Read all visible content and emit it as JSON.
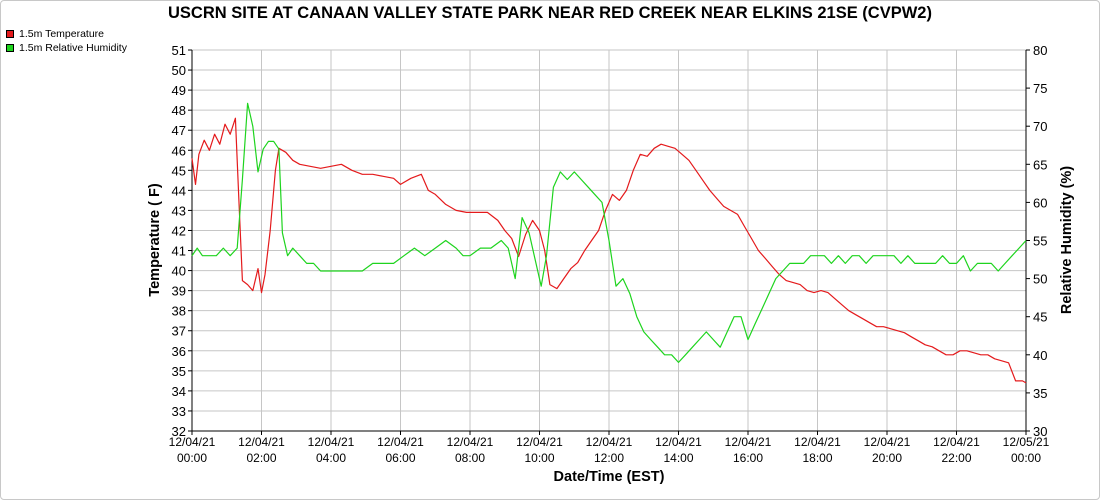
{
  "chart_data": {
    "type": "line",
    "title": "USCRN SITE AT CANAAN VALLEY STATE PARK NEAR RED CREEK NEAR ELKINS 21SE (CVPW2)",
    "xlabel": "Date/Time (EST)",
    "ylabel": "Temperature ( F)",
    "y2label": "Relative Humidity (%)",
    "xlim_hours": [
      0,
      24
    ],
    "ylim": [
      32,
      51
    ],
    "y2lim": [
      30,
      80
    ],
    "grid": true,
    "legend_position": "top-left",
    "x_ticks": [
      {
        "date": "12/04/21",
        "time": "00:00"
      },
      {
        "date": "12/04/21",
        "time": "02:00"
      },
      {
        "date": "12/04/21",
        "time": "04:00"
      },
      {
        "date": "12/04/21",
        "time": "06:00"
      },
      {
        "date": "12/04/21",
        "time": "08:00"
      },
      {
        "date": "12/04/21",
        "time": "10:00"
      },
      {
        "date": "12/04/21",
        "time": "12:00"
      },
      {
        "date": "12/04/21",
        "time": "14:00"
      },
      {
        "date": "12/04/21",
        "time": "16:00"
      },
      {
        "date": "12/04/21",
        "time": "18:00"
      },
      {
        "date": "12/04/21",
        "time": "20:00"
      },
      {
        "date": "12/04/21",
        "time": "22:00"
      },
      {
        "date": "12/05/21",
        "time": "00:00"
      }
    ],
    "y_ticks": [
      32,
      33,
      34,
      35,
      36,
      37,
      38,
      39,
      40,
      41,
      42,
      43,
      44,
      45,
      46,
      47,
      48,
      49,
      50,
      51
    ],
    "y2_ticks": [
      30,
      35,
      40,
      45,
      50,
      55,
      60,
      65,
      70,
      75,
      80
    ],
    "series": [
      {
        "name": "1.5m Temperature",
        "axis": "left",
        "color": "#e41a1c",
        "points": [
          [
            0.0,
            45.6
          ],
          [
            0.1,
            44.3
          ],
          [
            0.2,
            45.8
          ],
          [
            0.35,
            46.5
          ],
          [
            0.5,
            46.0
          ],
          [
            0.65,
            46.8
          ],
          [
            0.8,
            46.3
          ],
          [
            0.95,
            47.3
          ],
          [
            1.1,
            46.8
          ],
          [
            1.25,
            47.6
          ],
          [
            1.35,
            43.5
          ],
          [
            1.45,
            39.5
          ],
          [
            1.6,
            39.3
          ],
          [
            1.75,
            39.0
          ],
          [
            1.9,
            40.1
          ],
          [
            2.0,
            38.9
          ],
          [
            2.1,
            39.8
          ],
          [
            2.25,
            42.0
          ],
          [
            2.4,
            45.0
          ],
          [
            2.5,
            46.1
          ],
          [
            2.7,
            45.9
          ],
          [
            2.9,
            45.5
          ],
          [
            3.1,
            45.3
          ],
          [
            3.4,
            45.2
          ],
          [
            3.7,
            45.1
          ],
          [
            4.0,
            45.2
          ],
          [
            4.3,
            45.3
          ],
          [
            4.6,
            45.0
          ],
          [
            4.9,
            44.8
          ],
          [
            5.2,
            44.8
          ],
          [
            5.5,
            44.7
          ],
          [
            5.8,
            44.6
          ],
          [
            6.0,
            44.3
          ],
          [
            6.3,
            44.6
          ],
          [
            6.6,
            44.8
          ],
          [
            6.8,
            44.0
          ],
          [
            7.0,
            43.8
          ],
          [
            7.3,
            43.3
          ],
          [
            7.6,
            43.0
          ],
          [
            7.9,
            42.9
          ],
          [
            8.2,
            42.9
          ],
          [
            8.5,
            42.9
          ],
          [
            8.8,
            42.5
          ],
          [
            9.0,
            42.0
          ],
          [
            9.2,
            41.6
          ],
          [
            9.4,
            40.7
          ],
          [
            9.6,
            41.8
          ],
          [
            9.8,
            42.5
          ],
          [
            10.0,
            42.0
          ],
          [
            10.15,
            41.0
          ],
          [
            10.3,
            39.3
          ],
          [
            10.5,
            39.1
          ],
          [
            10.7,
            39.6
          ],
          [
            10.9,
            40.1
          ],
          [
            11.1,
            40.4
          ],
          [
            11.3,
            41.0
          ],
          [
            11.5,
            41.5
          ],
          [
            11.7,
            42.0
          ],
          [
            11.9,
            43.0
          ],
          [
            12.1,
            43.8
          ],
          [
            12.3,
            43.5
          ],
          [
            12.5,
            44.0
          ],
          [
            12.7,
            45.0
          ],
          [
            12.9,
            45.8
          ],
          [
            13.1,
            45.7
          ],
          [
            13.3,
            46.1
          ],
          [
            13.5,
            46.3
          ],
          [
            13.7,
            46.2
          ],
          [
            13.9,
            46.1
          ],
          [
            14.1,
            45.8
          ],
          [
            14.3,
            45.5
          ],
          [
            14.5,
            45.0
          ],
          [
            14.7,
            44.5
          ],
          [
            14.9,
            44.0
          ],
          [
            15.1,
            43.6
          ],
          [
            15.3,
            43.2
          ],
          [
            15.5,
            43.0
          ],
          [
            15.7,
            42.8
          ],
          [
            15.9,
            42.2
          ],
          [
            16.1,
            41.6
          ],
          [
            16.3,
            41.0
          ],
          [
            16.5,
            40.6
          ],
          [
            16.7,
            40.2
          ],
          [
            16.9,
            39.8
          ],
          [
            17.1,
            39.5
          ],
          [
            17.3,
            39.4
          ],
          [
            17.5,
            39.3
          ],
          [
            17.7,
            39.0
          ],
          [
            17.9,
            38.9
          ],
          [
            18.1,
            39.0
          ],
          [
            18.3,
            38.9
          ],
          [
            18.5,
            38.6
          ],
          [
            18.7,
            38.3
          ],
          [
            18.9,
            38.0
          ],
          [
            19.1,
            37.8
          ],
          [
            19.3,
            37.6
          ],
          [
            19.5,
            37.4
          ],
          [
            19.7,
            37.2
          ],
          [
            19.9,
            37.2
          ],
          [
            20.1,
            37.1
          ],
          [
            20.3,
            37.0
          ],
          [
            20.5,
            36.9
          ],
          [
            20.7,
            36.7
          ],
          [
            20.9,
            36.5
          ],
          [
            21.1,
            36.3
          ],
          [
            21.3,
            36.2
          ],
          [
            21.5,
            36.0
          ],
          [
            21.7,
            35.8
          ],
          [
            21.9,
            35.8
          ],
          [
            22.1,
            36.0
          ],
          [
            22.3,
            36.0
          ],
          [
            22.5,
            35.9
          ],
          [
            22.7,
            35.8
          ],
          [
            22.9,
            35.8
          ],
          [
            23.1,
            35.6
          ],
          [
            23.3,
            35.5
          ],
          [
            23.5,
            35.4
          ],
          [
            23.7,
            34.5
          ],
          [
            23.9,
            34.5
          ],
          [
            24.0,
            34.4
          ]
        ]
      },
      {
        "name": "1.5m Relative Humidity",
        "axis": "right",
        "color": "#1ed41e",
        "points": [
          [
            0.0,
            53
          ],
          [
            0.15,
            54
          ],
          [
            0.3,
            53
          ],
          [
            0.5,
            53
          ],
          [
            0.7,
            53
          ],
          [
            0.9,
            54
          ],
          [
            1.1,
            53
          ],
          [
            1.3,
            54
          ],
          [
            1.45,
            63
          ],
          [
            1.6,
            73
          ],
          [
            1.75,
            70
          ],
          [
            1.9,
            64
          ],
          [
            2.05,
            67
          ],
          [
            2.2,
            68
          ],
          [
            2.35,
            68
          ],
          [
            2.5,
            67
          ],
          [
            2.6,
            56
          ],
          [
            2.75,
            53
          ],
          [
            2.9,
            54
          ],
          [
            3.1,
            53
          ],
          [
            3.3,
            52
          ],
          [
            3.5,
            52
          ],
          [
            3.7,
            51
          ],
          [
            3.9,
            51
          ],
          [
            4.1,
            51
          ],
          [
            4.3,
            51
          ],
          [
            4.6,
            51
          ],
          [
            4.9,
            51
          ],
          [
            5.2,
            52
          ],
          [
            5.5,
            52
          ],
          [
            5.8,
            52
          ],
          [
            6.1,
            53
          ],
          [
            6.4,
            54
          ],
          [
            6.7,
            53
          ],
          [
            7.0,
            54
          ],
          [
            7.3,
            55
          ],
          [
            7.6,
            54
          ],
          [
            7.8,
            53
          ],
          [
            8.0,
            53
          ],
          [
            8.3,
            54
          ],
          [
            8.6,
            54
          ],
          [
            8.9,
            55
          ],
          [
            9.1,
            54
          ],
          [
            9.3,
            50
          ],
          [
            9.5,
            58
          ],
          [
            9.7,
            56
          ],
          [
            9.9,
            52
          ],
          [
            10.05,
            49
          ],
          [
            10.2,
            53
          ],
          [
            10.4,
            62
          ],
          [
            10.6,
            64
          ],
          [
            10.8,
            63
          ],
          [
            11.0,
            64
          ],
          [
            11.2,
            63
          ],
          [
            11.4,
            62
          ],
          [
            11.6,
            61
          ],
          [
            11.8,
            60
          ],
          [
            12.0,
            55
          ],
          [
            12.2,
            49
          ],
          [
            12.4,
            50
          ],
          [
            12.6,
            48
          ],
          [
            12.8,
            45
          ],
          [
            13.0,
            43
          ],
          [
            13.2,
            42
          ],
          [
            13.4,
            41
          ],
          [
            13.6,
            40
          ],
          [
            13.8,
            40
          ],
          [
            14.0,
            39
          ],
          [
            14.2,
            40
          ],
          [
            14.4,
            41
          ],
          [
            14.6,
            42
          ],
          [
            14.8,
            43
          ],
          [
            15.0,
            42
          ],
          [
            15.2,
            41
          ],
          [
            15.4,
            43
          ],
          [
            15.6,
            45
          ],
          [
            15.8,
            45
          ],
          [
            16.0,
            42
          ],
          [
            16.2,
            44
          ],
          [
            16.4,
            46
          ],
          [
            16.6,
            48
          ],
          [
            16.8,
            50
          ],
          [
            17.0,
            51
          ],
          [
            17.2,
            52
          ],
          [
            17.4,
            52
          ],
          [
            17.6,
            52
          ],
          [
            17.8,
            53
          ],
          [
            18.0,
            53
          ],
          [
            18.2,
            53
          ],
          [
            18.4,
            52
          ],
          [
            18.6,
            53
          ],
          [
            18.8,
            52
          ],
          [
            19.0,
            53
          ],
          [
            19.2,
            53
          ],
          [
            19.4,
            52
          ],
          [
            19.6,
            53
          ],
          [
            19.8,
            53
          ],
          [
            20.0,
            53
          ],
          [
            20.2,
            53
          ],
          [
            20.4,
            52
          ],
          [
            20.6,
            53
          ],
          [
            20.8,
            52
          ],
          [
            21.0,
            52
          ],
          [
            21.2,
            52
          ],
          [
            21.4,
            52
          ],
          [
            21.6,
            53
          ],
          [
            21.8,
            52
          ],
          [
            22.0,
            52
          ],
          [
            22.2,
            53
          ],
          [
            22.4,
            51
          ],
          [
            22.6,
            52
          ],
          [
            22.8,
            52
          ],
          [
            23.0,
            52
          ],
          [
            23.2,
            51
          ],
          [
            23.4,
            52
          ],
          [
            23.6,
            53
          ],
          [
            23.8,
            54
          ],
          [
            24.0,
            55
          ]
        ]
      }
    ]
  },
  "colors": {
    "temperature": "#e41a1c",
    "humidity": "#1ed41e",
    "grid": "#c6c6c6",
    "axis": "#000000"
  }
}
